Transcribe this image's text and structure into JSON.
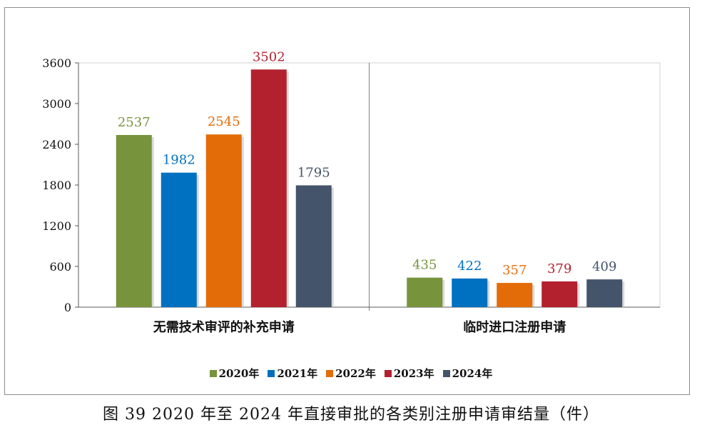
{
  "chart_data": {
    "type": "bar",
    "categories": [
      "无需技术审评的补充申请",
      "临时进口注册申请"
    ],
    "series": [
      {
        "name": "2020年",
        "color": "#77933c",
        "values": [
          2537,
          435
        ]
      },
      {
        "name": "2021年",
        "color": "#0070c0",
        "values": [
          1982,
          422
        ]
      },
      {
        "name": "2022年",
        "color": "#e36c09",
        "values": [
          2545,
          357
        ]
      },
      {
        "name": "2023年",
        "color": "#b3202e",
        "values": [
          3502,
          379
        ]
      },
      {
        "name": "2024年",
        "color": "#44546a",
        "values": [
          1795,
          409
        ]
      }
    ],
    "ylim": [
      0,
      3600
    ],
    "yticks": [
      0,
      600,
      1200,
      1800,
      2400,
      3000,
      3600
    ],
    "grid": false,
    "legend_position": "bottom",
    "title": "",
    "xlabel": "",
    "ylabel": ""
  },
  "caption": "图 39 2020 年至 2024 年直接审批的各类别注册申请审结量（件）"
}
